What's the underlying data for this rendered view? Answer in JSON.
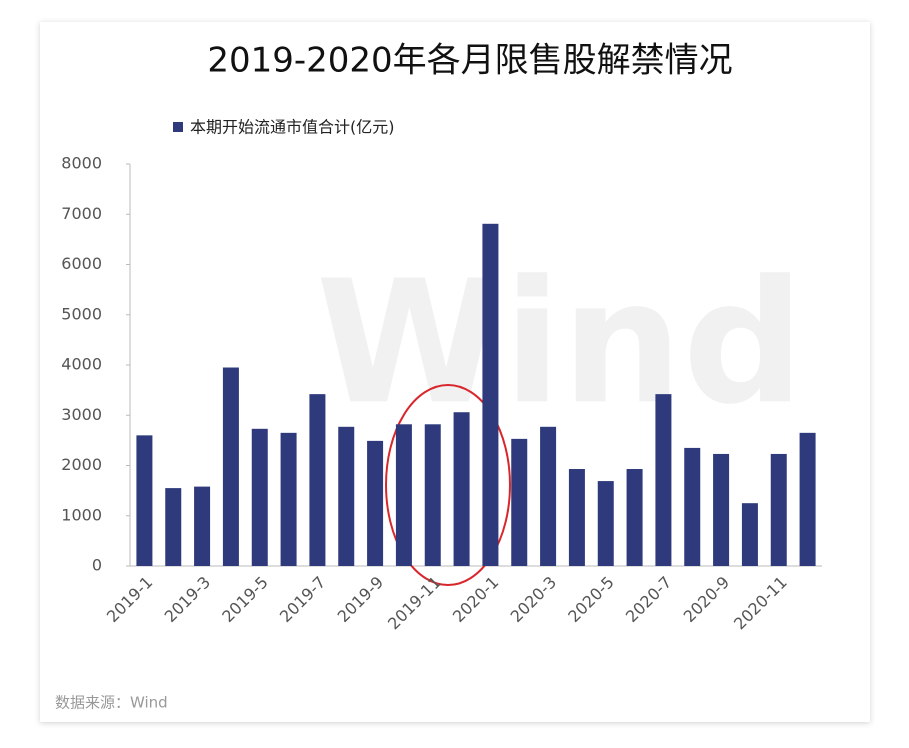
{
  "chart_data": {
    "type": "bar",
    "title": "2019-2020年各月限售股解禁情况",
    "categories": [
      "2019-1",
      null,
      "2019-3",
      null,
      "2019-5",
      null,
      "2019-7",
      null,
      "2019-9",
      null,
      "2019-11",
      null,
      "2020-1",
      null,
      "2020-3",
      null,
      "2020-5",
      null,
      "2020-7",
      null,
      "2020-9",
      null,
      "2020-11",
      null
    ],
    "series": [
      {
        "name": "本期开始流通市值合计(亿元)",
        "color": "#2e3a7c",
        "values": [
          2600,
          1550,
          1580,
          3950,
          2730,
          2650,
          3420,
          2770,
          2490,
          2820,
          2820,
          3060,
          6810,
          2530,
          2770,
          1930,
          1690,
          1930,
          3420,
          2350,
          2230,
          1250,
          2230,
          2650
        ]
      }
    ],
    "ylim": [
      0,
      8000
    ],
    "yticks": [
      0,
      1000,
      2000,
      3000,
      4000,
      5000,
      6000,
      7000,
      8000
    ],
    "grid": false,
    "legend": "top-left",
    "source": "数据来源：Wind",
    "watermark": "Wind"
  }
}
